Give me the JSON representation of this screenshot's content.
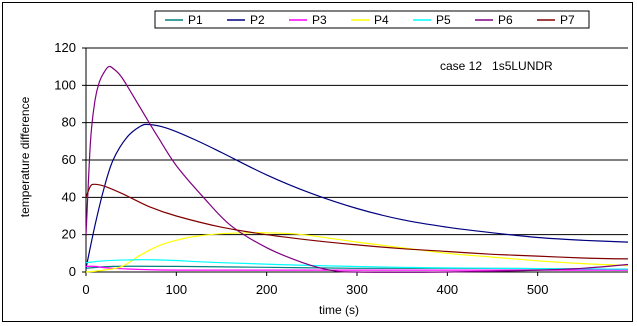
{
  "chart_data": {
    "type": "line",
    "annotation": "case 12   1s5LUNDR",
    "xlabel": "time (s)",
    "ylabel": "temperature difference",
    "xlim": [
      0,
      600
    ],
    "ylim": [
      0,
      120
    ],
    "xticks": [
      0,
      100,
      200,
      300,
      400,
      500
    ],
    "yticks": [
      0,
      20,
      40,
      60,
      80,
      100,
      120
    ],
    "grid": "horizontal",
    "legend_position": "top",
    "series": [
      {
        "name": "P1",
        "color": "#008080",
        "points": [
          [
            0,
            2
          ],
          [
            30,
            3
          ],
          [
            100,
            3
          ],
          [
            200,
            2.5
          ],
          [
            300,
            2
          ],
          [
            400,
            2
          ],
          [
            500,
            1.8
          ],
          [
            600,
            1.5
          ]
        ]
      },
      {
        "name": "P2",
        "color": "#000080",
        "points": [
          [
            0,
            2
          ],
          [
            10,
            25
          ],
          [
            20,
            45
          ],
          [
            30,
            60
          ],
          [
            45,
            72
          ],
          [
            60,
            78
          ],
          [
            70,
            79
          ],
          [
            90,
            77
          ],
          [
            120,
            71
          ],
          [
            150,
            64
          ],
          [
            200,
            52
          ],
          [
            250,
            42
          ],
          [
            300,
            34
          ],
          [
            350,
            28
          ],
          [
            400,
            24
          ],
          [
            450,
            21
          ],
          [
            500,
            18.5
          ],
          [
            550,
            17
          ],
          [
            600,
            16
          ]
        ]
      },
      {
        "name": "P3",
        "color": "#ff00ff",
        "points": [
          [
            0,
            3
          ],
          [
            10,
            3
          ],
          [
            30,
            2
          ],
          [
            100,
            1
          ],
          [
            300,
            1
          ],
          [
            600,
            1
          ]
        ]
      },
      {
        "name": "P4",
        "color": "#ffff00",
        "points": [
          [
            0,
            0
          ],
          [
            20,
            1
          ],
          [
            40,
            3
          ],
          [
            60,
            9
          ],
          [
            80,
            14
          ],
          [
            100,
            17
          ],
          [
            120,
            19
          ],
          [
            150,
            20.5
          ],
          [
            180,
            21
          ],
          [
            200,
            21
          ],
          [
            240,
            20
          ],
          [
            300,
            16
          ],
          [
            350,
            13
          ],
          [
            400,
            10
          ],
          [
            450,
            8
          ],
          [
            500,
            6
          ],
          [
            550,
            4.5
          ],
          [
            600,
            3.5
          ]
        ]
      },
      {
        "name": "P5",
        "color": "#00ffff",
        "points": [
          [
            0,
            5
          ],
          [
            20,
            6
          ],
          [
            50,
            6.5
          ],
          [
            80,
            6.5
          ],
          [
            150,
            5
          ],
          [
            250,
            3.5
          ],
          [
            350,
            2.5
          ],
          [
            450,
            2
          ],
          [
            600,
            1.5
          ]
        ]
      },
      {
        "name": "P6",
        "color": "#800080",
        "points": [
          [
            0,
            20
          ],
          [
            5,
            70
          ],
          [
            10,
            92
          ],
          [
            15,
            102
          ],
          [
            20,
            107
          ],
          [
            25,
            110
          ],
          [
            30,
            109
          ],
          [
            40,
            104
          ],
          [
            60,
            88
          ],
          [
            80,
            72
          ],
          [
            100,
            57
          ],
          [
            130,
            40
          ],
          [
            160,
            25
          ],
          [
            200,
            13
          ],
          [
            240,
            5
          ],
          [
            270,
            1
          ],
          [
            300,
            0
          ],
          [
            400,
            0
          ],
          [
            500,
            1
          ],
          [
            550,
            2
          ],
          [
            600,
            4
          ]
        ]
      },
      {
        "name": "P7",
        "color": "#800000",
        "points": [
          [
            0,
            40
          ],
          [
            5,
            46
          ],
          [
            10,
            47
          ],
          [
            20,
            46
          ],
          [
            40,
            42
          ],
          [
            70,
            35
          ],
          [
            100,
            30
          ],
          [
            150,
            24
          ],
          [
            200,
            20
          ],
          [
            250,
            17
          ],
          [
            300,
            14.5
          ],
          [
            350,
            12.5
          ],
          [
            400,
            11
          ],
          [
            450,
            9.5
          ],
          [
            500,
            8.5
          ],
          [
            550,
            7.5
          ],
          [
            600,
            7
          ]
        ]
      }
    ]
  }
}
